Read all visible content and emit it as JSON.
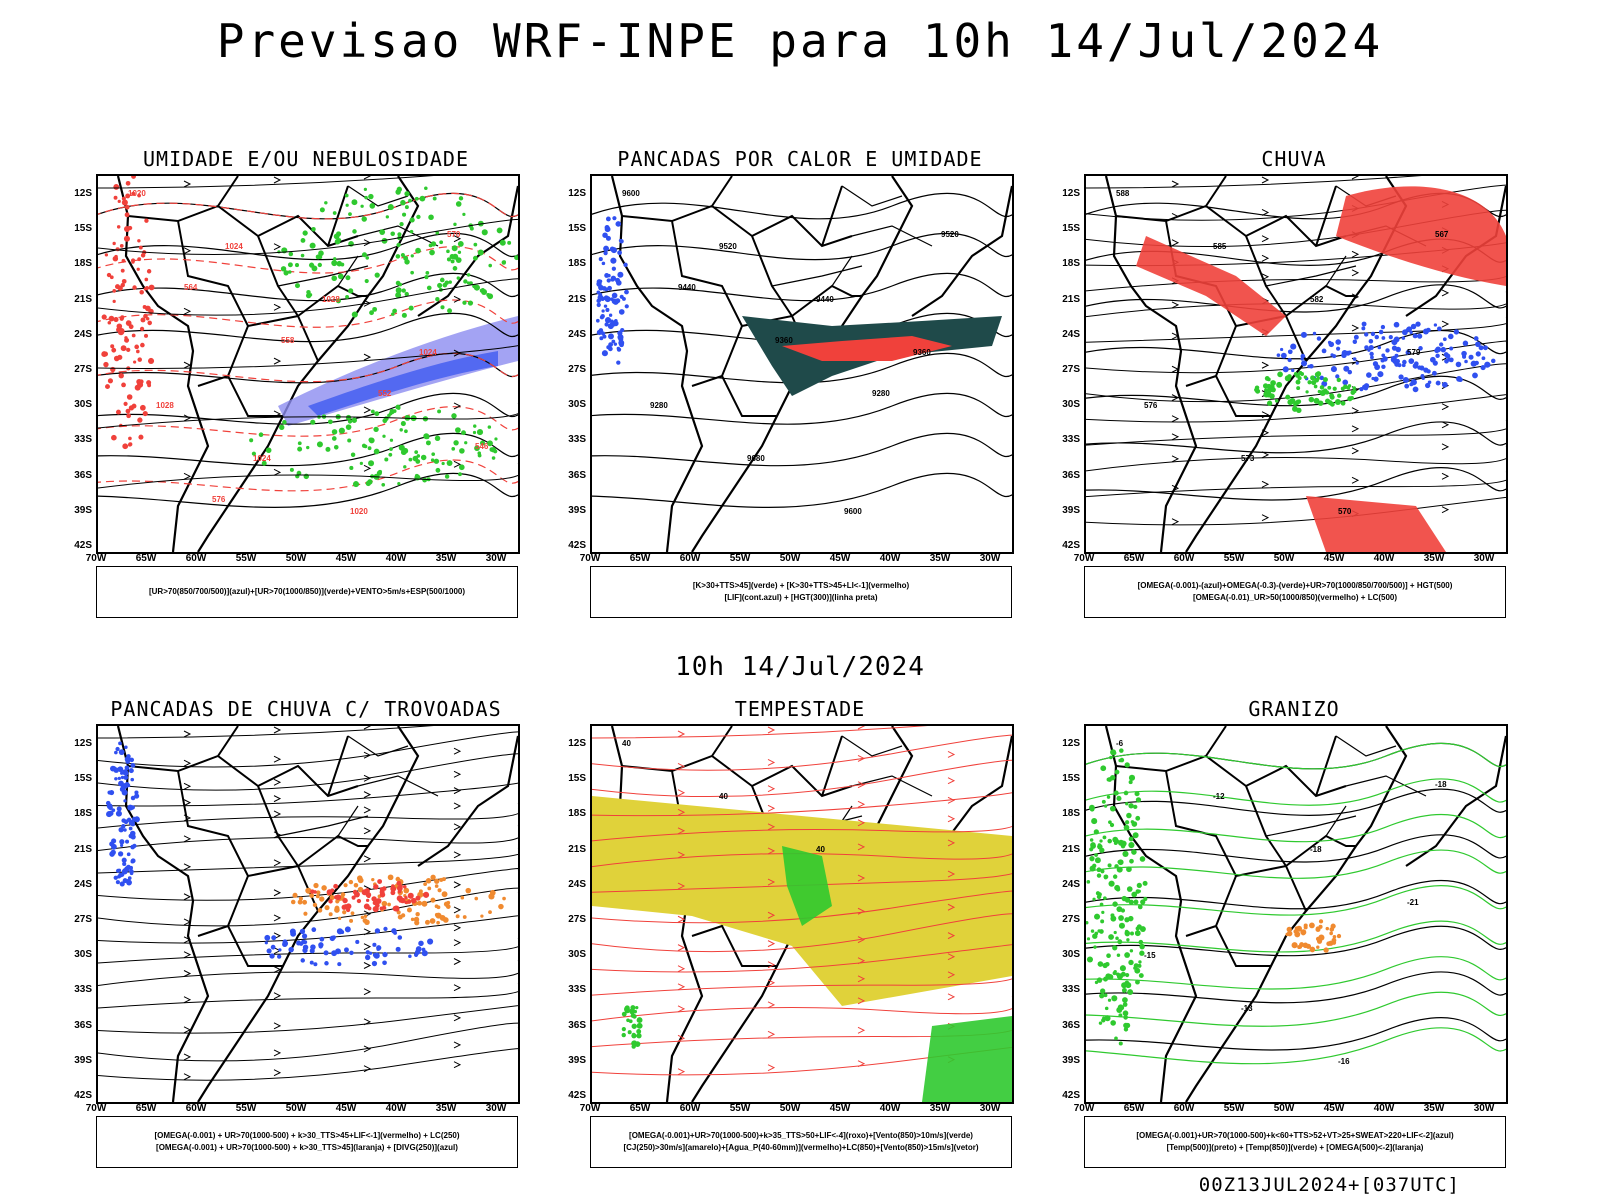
{
  "main_title": "Previsao WRF-INPE  para 10h 14/Jul/2024",
  "mid_title": "10h 14/Jul/2024",
  "footer": "00Z13JUL2024+[037UTC]",
  "lat_labels": [
    "12S",
    "15S",
    "18S",
    "21S",
    "24S",
    "27S",
    "30S",
    "33S",
    "36S",
    "39S",
    "42S"
  ],
  "lon_labels": [
    "70W",
    "65W",
    "60W",
    "55W",
    "50W",
    "45W",
    "40W",
    "35W",
    "30W"
  ],
  "colors": {
    "red": "#f0413b",
    "green": "#2fc92f",
    "blue": "#3050f0",
    "purple": "#8c8cf0",
    "yellow": "#e0d23a",
    "orange": "#f08a30",
    "dark": "#1f4a4a"
  },
  "panels": [
    {
      "title": "UMIDADE E/OU NEBULOSIDADE",
      "legend": [
        "[UR>70(850/700/500)](azul)+[UR>70(1000/850)](verde)+VENTO>5m/s+ESP(500/1000)"
      ],
      "contour_labels": [
        "1020",
        "1024",
        "1028",
        "1024",
        "1028",
        "1024",
        "1020",
        "570",
        "564",
        "558",
        "552",
        "546",
        "576"
      ]
    },
    {
      "title": "PANCADAS POR CALOR E UMIDADE",
      "legend": [
        "[K>30+TTS>45](verde) + [K>30+TTS>45+LI<-1](vermelho)",
        "[LIF](cont.azul) + [HGT(300)](linha preta)"
      ],
      "contour_labels": [
        "9600",
        "9520",
        "9440",
        "9360",
        "9280",
        "9680",
        "9600",
        "9520",
        "9440",
        "9360",
        "9280"
      ]
    },
    {
      "title": "CHUVA",
      "legend": [
        "[OMEGA(-0.001)-(azul)+OMEGA(-0.3)-(verde)+UR>70(1000/850/700/500)] + HGT(500)",
        "[OMEGA(-0.01)_UR>50(1000/850)(vermelho) + LC(500)"
      ],
      "contour_labels": [
        "588",
        "585",
        "582",
        "579",
        "576",
        "573",
        "570",
        "567"
      ]
    },
    {
      "title": "PANCADAS DE CHUVA C/ TROVOADAS",
      "legend": [
        "[OMEGA(-0.001) + UR>70(1000-500) + k>30_TTS>45+LIF<-1](vermelho) + LC(250)",
        "[OMEGA(-0.001) + UR>70(1000-500) + k>30_TTS>45](laranja) + [DIVG(250)](azul)"
      ],
      "contour_labels": []
    },
    {
      "title": "TEMPESTADE",
      "legend": [
        "[OMEGA(-0.001)+UR>70(1000-500)+k>35_TTS>50+LIF<-4](roxo)+[Vento(850)>10m/s](verde)",
        "[CJ(250)>30m/s](amarelo)+[Agua_P(40-60mm)](vermelho)+LC(850)+[Vento(850)>15m/s](vetor)"
      ],
      "contour_labels": [
        "40",
        "40",
        "40"
      ]
    },
    {
      "title": "GRANIZO",
      "legend": [
        "[OMEGA(-0.001)+UR>70(1000-500)+k<60+TTS>52+VT>25+SWEAT>220+LIF<-2](azul)",
        "[Temp(500)](preto) + [Temp(850)](verde) + [OMEGA(500)<-2](laranja)"
      ],
      "contour_labels": [
        "-6",
        "-12",
        "-18",
        "-21",
        "-15",
        "-13",
        "-16",
        "-18"
      ]
    }
  ]
}
